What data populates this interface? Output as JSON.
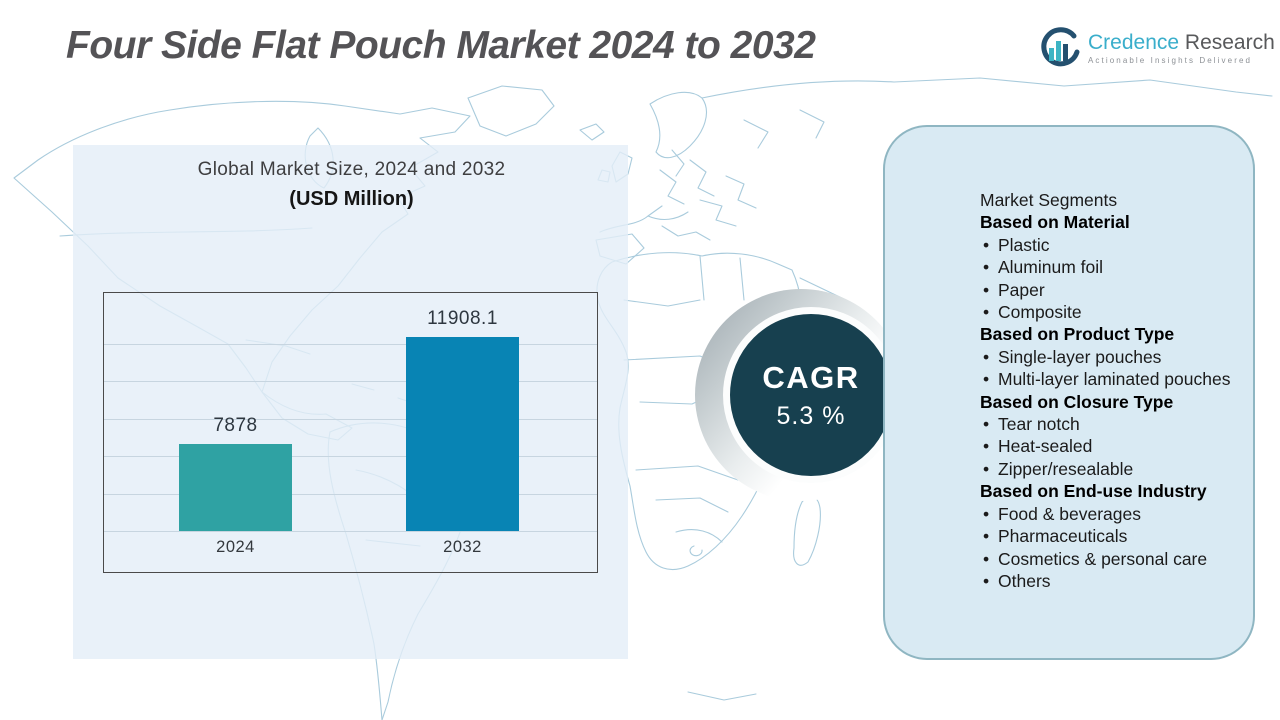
{
  "header": {
    "title": "Four Side Flat Pouch Market 2024 to 2032",
    "logo": {
      "brand_primary": "Credence",
      "brand_secondary": "Research",
      "tagline": "Actionable Insights Delivered"
    }
  },
  "chart_panel": {
    "heading_line1": "Global Market Size, 2024 and 2032",
    "heading_line2": "(USD Million)"
  },
  "chart_data": {
    "type": "bar",
    "title": "Global Market Size, 2024 and 2032 (USD Million)",
    "categories": [
      "2024",
      "2032"
    ],
    "values": [
      7878,
      11908.1
    ],
    "value_labels": [
      "7878",
      "11908.1"
    ],
    "series": [
      {
        "name": "Global Market Size (USD Million)",
        "values": [
          7878,
          11908.1
        ]
      }
    ],
    "bar_colors": [
      "#2fa2a3",
      "#0884b4"
    ],
    "ylim": [
      4600,
      13560
    ],
    "grid": true,
    "gridline_count": 6,
    "legend": "none",
    "xlabel": "",
    "ylabel": ""
  },
  "cagr": {
    "label": "CAGR",
    "value": "5.3 %"
  },
  "segments": {
    "items": [
      {
        "type": "title",
        "text": "Market Segments"
      },
      {
        "type": "header",
        "text": "Based on Material"
      },
      {
        "type": "bullet",
        "text": "Plastic"
      },
      {
        "type": "bullet",
        "text": "Aluminum foil"
      },
      {
        "type": "bullet",
        "text": "Paper"
      },
      {
        "type": "bullet",
        "text": "Composite"
      },
      {
        "type": "header",
        "text": "Based on Product Type"
      },
      {
        "type": "bullet",
        "text": "Single-layer pouches"
      },
      {
        "type": "bullet",
        "text": "Multi-layer laminated pouches"
      },
      {
        "type": "header",
        "text": "Based on Closure Type"
      },
      {
        "type": "bullet",
        "text": "Tear notch"
      },
      {
        "type": "bullet",
        "text": "Heat-sealed"
      },
      {
        "type": "bullet",
        "text": "Zipper/resealable"
      },
      {
        "type": "header",
        "text": "Based on End-use Industry"
      },
      {
        "type": "bullet",
        "text": "Food & beverages"
      },
      {
        "type": "bullet",
        "text": "Pharmaceuticals"
      },
      {
        "type": "bullet",
        "text": "Cosmetics & personal care"
      },
      {
        "type": "bullet",
        "text": "Others"
      }
    ]
  },
  "colors": {
    "bar_2024": "#2fa2a3",
    "bar_2032": "#0884b4",
    "cagr_circle": "#17404f",
    "panel_right_bg": "#d9eaf3",
    "panel_right_border": "#8fb6c2",
    "panel_left_bg": "#e3eef8",
    "map_line": "#a9cbdc",
    "title_text": "#545356",
    "brand_blue": "#3aaecb",
    "brand_gray": "#58595b"
  }
}
